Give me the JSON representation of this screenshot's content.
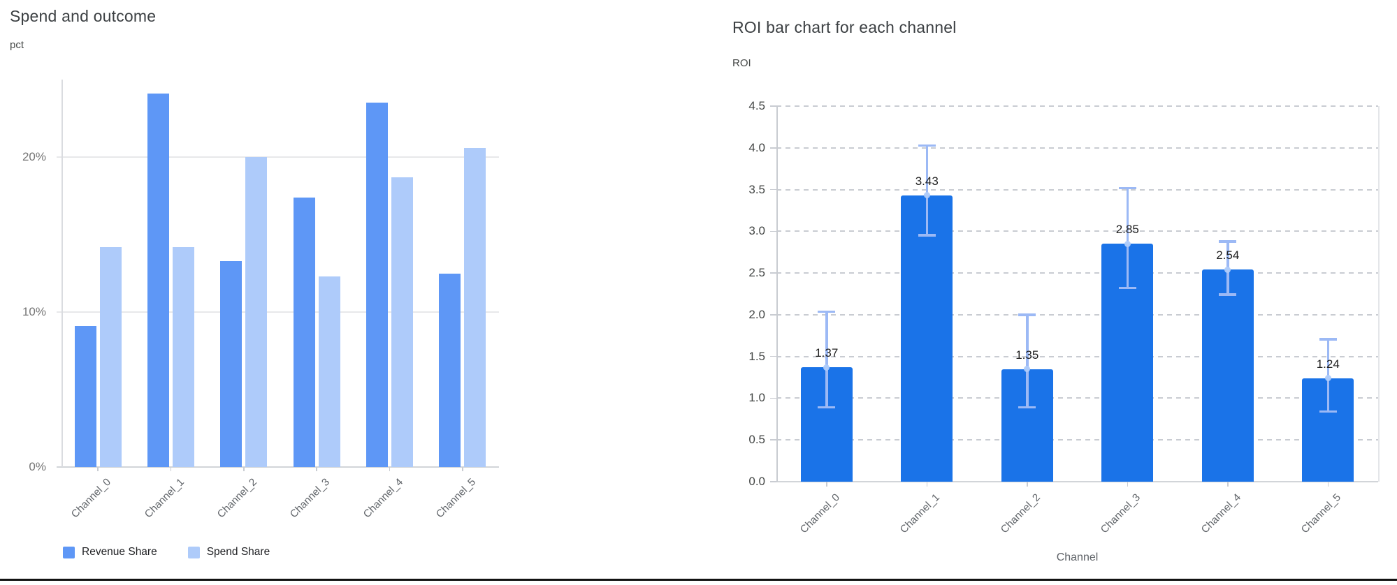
{
  "chart_data": [
    {
      "id": "spend_outcome",
      "type": "bar",
      "title": "Spend and outcome",
      "y_unit_label": "pct",
      "xlabel": "",
      "categories": [
        "Channel_0",
        "Channel_1",
        "Channel_2",
        "Channel_3",
        "Channel_4",
        "Channel_5"
      ],
      "series": [
        {
          "name": "Revenue Share",
          "color": "#5e97f6",
          "values": [
            9.1,
            24.1,
            13.3,
            17.4,
            23.5,
            12.5
          ]
        },
        {
          "name": "Spend Share",
          "color": "#aecbfa",
          "values": [
            14.2,
            14.2,
            20.0,
            12.3,
            18.7,
            20.6
          ]
        }
      ],
      "ylim": [
        0,
        25
      ],
      "yticks": [
        {
          "value": 0,
          "label": "0%"
        },
        {
          "value": 10,
          "label": "10%"
        },
        {
          "value": 20,
          "label": "20%"
        }
      ],
      "grid": "solid-horizontal",
      "legend_position": "bottom-left"
    },
    {
      "id": "roi_by_channel",
      "type": "bar",
      "title": "ROI bar chart for each channel",
      "y_unit_label": "ROI",
      "xlabel": "Channel",
      "categories": [
        "Channel_0",
        "Channel_1",
        "Channel_2",
        "Channel_3",
        "Channel_4",
        "Channel_5"
      ],
      "values": [
        1.37,
        3.43,
        1.35,
        2.85,
        2.54,
        1.24
      ],
      "value_labels": [
        "1.37",
        "3.43",
        "1.35",
        "2.85",
        "2.54",
        "1.24"
      ],
      "error_low": [
        0.89,
        2.95,
        0.89,
        2.32,
        2.24,
        0.84
      ],
      "error_high": [
        2.04,
        4.03,
        2.0,
        3.52,
        2.88,
        1.71
      ],
      "bar_color": "#1a73e8",
      "error_bar_color": "#9cb9f5",
      "error_marker_color": "#aecbfa",
      "ylim": [
        0,
        4.5
      ],
      "yticks": [
        {
          "value": 0.0,
          "label": "0.0"
        },
        {
          "value": 0.5,
          "label": "0.5"
        },
        {
          "value": 1.0,
          "label": "1.0"
        },
        {
          "value": 1.5,
          "label": "1.5"
        },
        {
          "value": 2.0,
          "label": "2.0"
        },
        {
          "value": 2.5,
          "label": "2.5"
        },
        {
          "value": 3.0,
          "label": "3.0"
        },
        {
          "value": 3.5,
          "label": "3.5"
        },
        {
          "value": 4.0,
          "label": "4.0"
        },
        {
          "value": 4.5,
          "label": "4.5"
        }
      ],
      "grid": "dashed-horizontal",
      "legend_position": "none"
    }
  ]
}
